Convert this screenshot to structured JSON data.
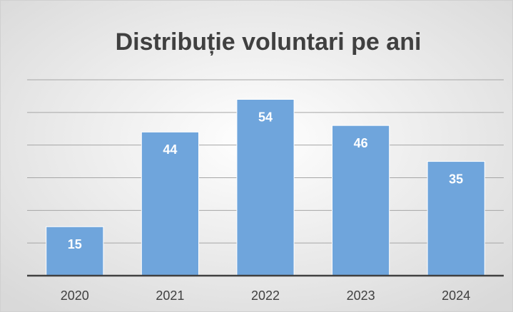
{
  "chart_data": {
    "type": "bar",
    "title": "Distribuție voluntari pe ani",
    "categories": [
      "2020",
      "2021",
      "2022",
      "2023",
      "2024"
    ],
    "values": [
      15,
      44,
      54,
      46,
      35
    ],
    "color": "#6fa5dc",
    "ylim": [
      0,
      60
    ],
    "yticks": [
      0,
      10,
      20,
      30,
      40,
      50,
      60
    ],
    "grid": true
  }
}
